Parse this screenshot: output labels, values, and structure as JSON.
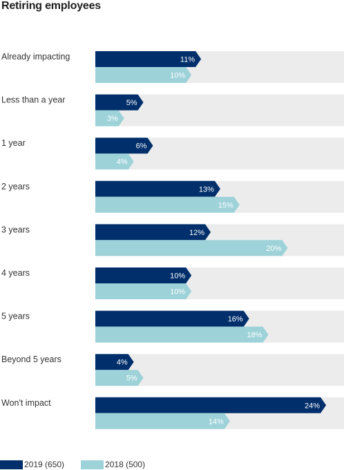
{
  "chart_data": {
    "type": "bar",
    "orientation": "horizontal",
    "title": "Retiring employees",
    "categories": [
      "Already impacting",
      "Less than a year",
      "1 year",
      "2 years",
      "3 years",
      "4 years",
      "5 years",
      "Beyond 5 years",
      "Won't impact"
    ],
    "series": [
      {
        "name": "2019 (650)",
        "color": "#012f6b",
        "label_color": "#ffffff",
        "values": [
          11,
          5,
          6,
          13,
          12,
          10,
          16,
          4,
          24
        ]
      },
      {
        "name": "2018 (500)",
        "color": "#9dd2d9",
        "label_color": "#ffffff",
        "values": [
          10,
          3,
          4,
          15,
          20,
          10,
          18,
          5,
          14
        ]
      }
    ],
    "value_suffix": "%",
    "xlim": [
      0,
      25
    ],
    "background_track_color": "#ececec",
    "legend_position": "bottom-left"
  }
}
